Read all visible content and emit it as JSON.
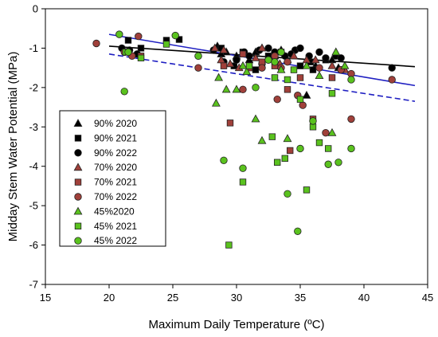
{
  "chart_data": {
    "type": "scatter",
    "xlabel": "Maximum Daily Temperature (ºC)",
    "ylabel": "Midday Stem Water Potential (MPa)",
    "xlim": [
      15,
      45
    ],
    "ylim": [
      -7,
      0
    ],
    "xticks": [
      15,
      20,
      25,
      30,
      35,
      40,
      45
    ],
    "yticks": [
      0,
      -1,
      -2,
      -3,
      -4,
      -5,
      -6,
      -7
    ],
    "legend_position": "left-middle",
    "series": [
      {
        "name": "90% 2020",
        "marker": "triangle",
        "color": "#000000",
        "points": [
          [
            28.5,
            -0.95
          ],
          [
            29.2,
            -1.1
          ],
          [
            30.0,
            -1.2
          ],
          [
            31.5,
            -1.1
          ],
          [
            32.0,
            -1.0
          ],
          [
            33.0,
            -1.2
          ],
          [
            34.0,
            -1.3
          ],
          [
            35.5,
            -2.2
          ],
          [
            36.2,
            -1.45
          ],
          [
            37.5,
            -1.3
          ],
          [
            38.0,
            -1.5
          ],
          [
            28.8,
            -1.15
          ],
          [
            31.0,
            -1.3
          ],
          [
            33.5,
            -1.05
          ]
        ]
      },
      {
        "name": "90% 2021",
        "marker": "square",
        "color": "#000000",
        "points": [
          [
            24.5,
            -0.8
          ],
          [
            25.5,
            -0.78
          ],
          [
            28.8,
            -1.0
          ],
          [
            29.8,
            -1.45
          ],
          [
            30.5,
            -1.1
          ],
          [
            31.5,
            -1.55
          ],
          [
            32.5,
            -1.2
          ],
          [
            33.5,
            -1.1
          ],
          [
            35.0,
            -1.45
          ],
          [
            36.0,
            -1.55
          ],
          [
            37.0,
            -1.3
          ],
          [
            21.5,
            -0.8
          ],
          [
            22.5,
            -1.0
          ],
          [
            35.8,
            -1.35
          ]
        ]
      },
      {
        "name": "90% 2022",
        "marker": "circle",
        "color": "#000000",
        "points": [
          [
            21.0,
            -1.0
          ],
          [
            21.6,
            -1.05
          ],
          [
            22.2,
            -1.15
          ],
          [
            27.0,
            -1.2
          ],
          [
            28.2,
            -1.05
          ],
          [
            29.0,
            -1.35
          ],
          [
            30.0,
            -1.3
          ],
          [
            30.6,
            -1.1
          ],
          [
            31.0,
            -1.2
          ],
          [
            32.0,
            -1.4
          ],
          [
            32.5,
            -1.0
          ],
          [
            33.0,
            -1.1
          ],
          [
            33.8,
            -1.2
          ],
          [
            34.6,
            -1.05
          ],
          [
            35.0,
            -1.0
          ],
          [
            35.7,
            -1.2
          ],
          [
            36.5,
            -1.1
          ],
          [
            37.0,
            -1.25
          ],
          [
            37.8,
            -1.2
          ],
          [
            38.2,
            -1.25
          ],
          [
            42.2,
            -1.5
          ],
          [
            34.3,
            -1.15
          ],
          [
            31.8,
            -1.05
          ]
        ]
      },
      {
        "name": "70% 2020",
        "marker": "triangle",
        "color": "#a0403a",
        "points": [
          [
            28.3,
            -1.0
          ],
          [
            28.8,
            -1.3
          ],
          [
            29.5,
            -1.4
          ],
          [
            30.2,
            -1.5
          ],
          [
            31.5,
            -1.25
          ],
          [
            32.0,
            -1.0
          ],
          [
            33.4,
            -1.4
          ],
          [
            34.5,
            -1.2
          ],
          [
            35.5,
            -1.3
          ],
          [
            36.2,
            -1.3
          ],
          [
            37.5,
            -1.45
          ],
          [
            38.5,
            -1.55
          ],
          [
            29.0,
            -1.05
          ]
        ]
      },
      {
        "name": "70% 2021",
        "marker": "square",
        "color": "#a0403a",
        "points": [
          [
            22.5,
            -1.2
          ],
          [
            29.5,
            -2.9
          ],
          [
            30.5,
            -1.15
          ],
          [
            31.0,
            -1.5
          ],
          [
            32.0,
            -1.35
          ],
          [
            33.0,
            -1.45
          ],
          [
            34.0,
            -2.05
          ],
          [
            35.0,
            -1.75
          ],
          [
            36.0,
            -2.8
          ],
          [
            37.5,
            -1.75
          ],
          [
            29.0,
            -1.45
          ],
          [
            34.2,
            -3.6
          ]
        ]
      },
      {
        "name": "70% 2022",
        "marker": "circle",
        "color": "#a0403a",
        "points": [
          [
            19.0,
            -0.88
          ],
          [
            21.2,
            -1.1
          ],
          [
            21.8,
            -1.2
          ],
          [
            22.3,
            -0.7
          ],
          [
            27.0,
            -1.5
          ],
          [
            30.5,
            -2.05
          ],
          [
            32.0,
            -1.5
          ],
          [
            33.0,
            -1.2
          ],
          [
            33.5,
            -1.5
          ],
          [
            34.0,
            -1.35
          ],
          [
            34.8,
            -2.2
          ],
          [
            35.2,
            -2.45
          ],
          [
            36.5,
            -1.5
          ],
          [
            37.0,
            -3.15
          ],
          [
            38.2,
            -1.55
          ],
          [
            39.0,
            -2.8
          ],
          [
            39.0,
            -1.65
          ],
          [
            42.2,
            -1.8
          ],
          [
            33.2,
            -2.3
          ]
        ]
      },
      {
        "name": "45%2020",
        "marker": "triangle",
        "color": "#5ac21e",
        "points": [
          [
            28.4,
            -2.4
          ],
          [
            28.6,
            -1.75
          ],
          [
            29.2,
            -2.05
          ],
          [
            30.0,
            -2.05
          ],
          [
            30.5,
            -1.45
          ],
          [
            31.5,
            -2.8
          ],
          [
            32.0,
            -3.35
          ],
          [
            33.5,
            -1.55
          ],
          [
            34.0,
            -3.3
          ],
          [
            35.5,
            -1.45
          ],
          [
            36.5,
            -1.7
          ],
          [
            37.5,
            -3.15
          ],
          [
            37.8,
            -1.1
          ],
          [
            38.5,
            -1.45
          ],
          [
            30.8,
            -1.6
          ]
        ]
      },
      {
        "name": "45% 2021",
        "marker": "square",
        "color": "#5ac21e",
        "points": [
          [
            21.3,
            -1.1
          ],
          [
            22.5,
            -1.25
          ],
          [
            24.5,
            -0.9
          ],
          [
            29.4,
            -6.0
          ],
          [
            30.5,
            -4.4
          ],
          [
            31.0,
            -1.45
          ],
          [
            32.8,
            -3.25
          ],
          [
            33.2,
            -3.9
          ],
          [
            33.8,
            -3.8
          ],
          [
            34.5,
            -1.55
          ],
          [
            35.0,
            -2.3
          ],
          [
            35.5,
            -4.6
          ],
          [
            36.0,
            -3.0
          ],
          [
            36.5,
            -3.4
          ],
          [
            37.2,
            -3.55
          ],
          [
            37.5,
            -2.15
          ],
          [
            33.0,
            -1.75
          ],
          [
            34.0,
            -1.8
          ]
        ]
      },
      {
        "name": "45% 2022",
        "marker": "circle",
        "color": "#5ac21e",
        "points": [
          [
            20.8,
            -0.65
          ],
          [
            21.2,
            -2.1
          ],
          [
            21.5,
            -1.1
          ],
          [
            25.2,
            -0.68
          ],
          [
            27.0,
            -1.2
          ],
          [
            29.0,
            -3.85
          ],
          [
            30.5,
            -4.05
          ],
          [
            31.5,
            -2.0
          ],
          [
            32.5,
            -1.3
          ],
          [
            33.0,
            -1.35
          ],
          [
            34.0,
            -4.7
          ],
          [
            34.8,
            -5.65
          ],
          [
            35.0,
            -3.55
          ],
          [
            36.0,
            -2.85
          ],
          [
            37.2,
            -3.95
          ],
          [
            38.0,
            -3.9
          ],
          [
            39.0,
            -3.55
          ],
          [
            39.0,
            -1.8
          ],
          [
            33.5,
            -1.1
          ]
        ]
      }
    ],
    "regression_lines": [
      {
        "style": "solid",
        "color": "#000000",
        "x": [
          20,
          44
        ],
        "y": [
          -0.95,
          -1.47
        ]
      },
      {
        "style": "solid",
        "color": "#1f1fc2",
        "x": [
          20,
          44
        ],
        "y": [
          -0.65,
          -1.95
        ]
      },
      {
        "style": "dashed",
        "color": "#1f1fc2",
        "x": [
          20,
          44
        ],
        "y": [
          -1.15,
          -2.35
        ]
      }
    ]
  }
}
